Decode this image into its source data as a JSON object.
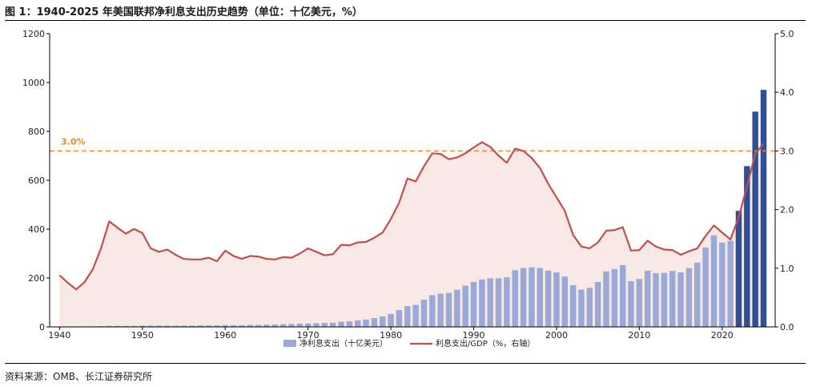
{
  "title": "图 1：1940-2025 年美国联邦净利息支出历史趋势（单位：十亿美元，%）",
  "source": "资料来源：OMB、长江证券研究所",
  "colors": {
    "bar_hist": "#9aa9d6",
    "bar_proj": "#2f4f96",
    "line": "#c0504d",
    "area_fill": "#f8e8e6",
    "ref_line": "#f08a24"
  },
  "chart_data": {
    "type": "bar",
    "x": [
      1940,
      1941,
      1942,
      1943,
      1944,
      1945,
      1946,
      1947,
      1948,
      1949,
      1950,
      1951,
      1952,
      1953,
      1954,
      1955,
      1956,
      1957,
      1958,
      1959,
      1960,
      1961,
      1962,
      1963,
      1964,
      1965,
      1966,
      1967,
      1968,
      1969,
      1970,
      1971,
      1972,
      1973,
      1974,
      1975,
      1976,
      1977,
      1978,
      1979,
      1980,
      1981,
      1982,
      1983,
      1984,
      1985,
      1986,
      1987,
      1988,
      1989,
      1990,
      1991,
      1992,
      1993,
      1994,
      1995,
      1996,
      1997,
      1998,
      1999,
      2000,
      2001,
      2002,
      2003,
      2004,
      2005,
      2006,
      2007,
      2008,
      2009,
      2010,
      2011,
      2012,
      2013,
      2014,
      2015,
      2016,
      2017,
      2018,
      2019,
      2020,
      2021,
      2022,
      2023,
      2024,
      2025
    ],
    "series": [
      {
        "name": "净利息支出（十亿美元）",
        "axis": "left",
        "values": [
          1,
          1,
          1,
          2,
          2,
          3,
          4,
          4,
          4,
          4,
          5,
          5,
          5,
          5,
          5,
          5,
          5,
          6,
          6,
          6,
          7,
          7,
          7,
          8,
          8,
          9,
          10,
          11,
          12,
          13,
          14,
          15,
          16,
          17,
          21,
          23,
          27,
          30,
          36,
          43,
          53,
          69,
          85,
          90,
          111,
          130,
          136,
          139,
          152,
          169,
          184,
          194,
          199,
          199,
          203,
          232,
          241,
          244,
          241,
          230,
          223,
          206,
          171,
          153,
          160,
          184,
          227,
          237,
          253,
          187,
          196,
          230,
          220,
          221,
          229,
          223,
          240,
          263,
          325,
          375,
          345,
          352,
          475,
          658,
          881,
          970
        ],
        "projected_from_index": 82
      },
      {
        "name": "利息支出/GDP（%，右轴）",
        "axis": "right",
        "values": [
          0.88,
          0.75,
          0.64,
          0.76,
          0.98,
          1.34,
          1.8,
          1.69,
          1.59,
          1.67,
          1.6,
          1.34,
          1.28,
          1.32,
          1.23,
          1.16,
          1.15,
          1.15,
          1.18,
          1.12,
          1.3,
          1.21,
          1.16,
          1.21,
          1.2,
          1.16,
          1.15,
          1.19,
          1.18,
          1.25,
          1.34,
          1.28,
          1.22,
          1.24,
          1.4,
          1.39,
          1.44,
          1.45,
          1.52,
          1.61,
          1.84,
          2.12,
          2.53,
          2.48,
          2.74,
          2.96,
          2.95,
          2.86,
          2.89,
          2.96,
          3.06,
          3.15,
          3.07,
          2.92,
          2.8,
          3.04,
          3.0,
          2.88,
          2.71,
          2.44,
          2.21,
          1.98,
          1.57,
          1.37,
          1.34,
          1.44,
          1.64,
          1.65,
          1.7,
          1.3,
          1.31,
          1.47,
          1.37,
          1.32,
          1.31,
          1.23,
          1.29,
          1.34,
          1.55,
          1.73,
          1.61,
          1.49,
          1.87,
          2.4,
          2.95,
          3.13
        ]
      }
    ],
    "xticks": [
      "1940",
      "1950",
      "1960",
      "1970",
      "1980",
      "1990",
      "2000",
      "2010",
      "2020"
    ],
    "ylim_left": [
      0,
      1200
    ],
    "yticks_left": [
      "0",
      "200",
      "400",
      "600",
      "800",
      "1000",
      "1200"
    ],
    "ylim_right": [
      0,
      5
    ],
    "yticks_right": [
      "0.0",
      "1.0",
      "2.0",
      "3.0",
      "4.0",
      "5.0"
    ],
    "reference_line": {
      "axis": "right",
      "value": 3.0,
      "label": "3.0%"
    },
    "legend_position": "bottom-center",
    "grid": false
  }
}
